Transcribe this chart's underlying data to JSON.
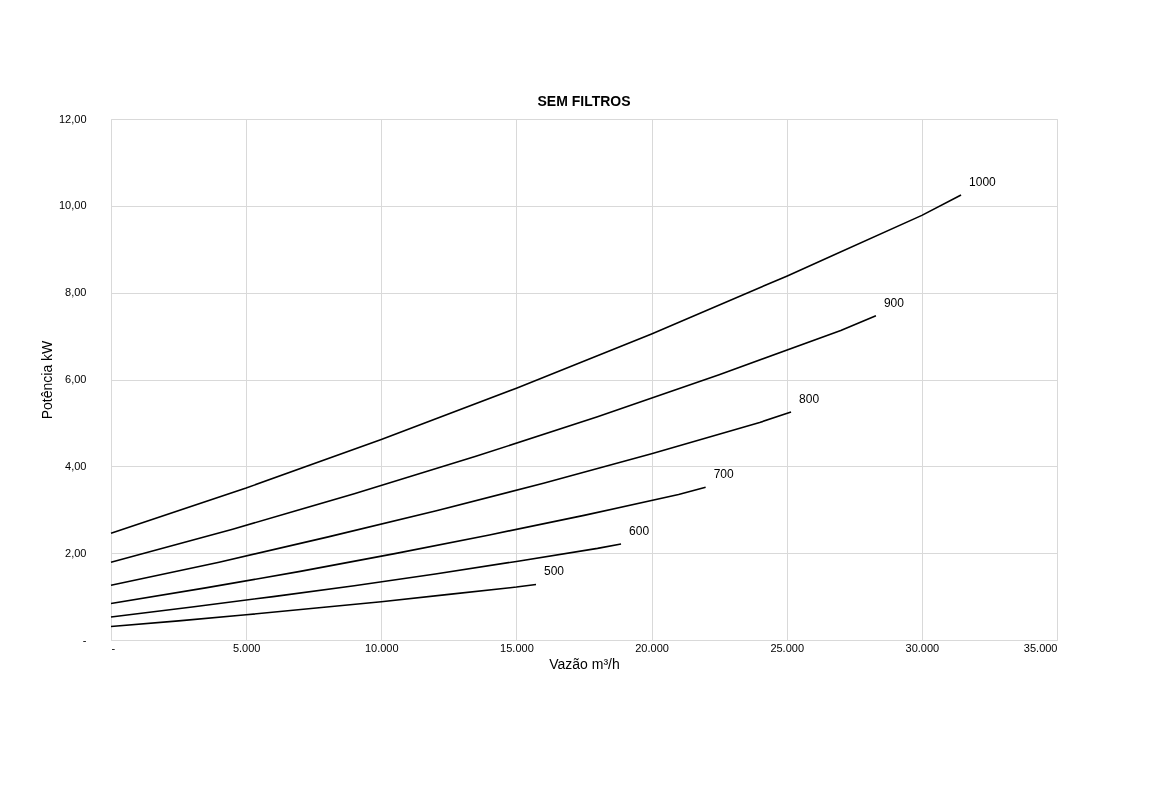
{
  "chart_data": {
    "type": "line",
    "title": "SEM FILTROS",
    "xlabel": "Vazão m³/h",
    "ylabel": "Potência kW",
    "xlim": [
      0,
      35000
    ],
    "xticks": [
      {
        "value": 0,
        "label": "-"
      },
      {
        "value": 5000,
        "label": "5.000"
      },
      {
        "value": 10000,
        "label": "10.000"
      },
      {
        "value": 15000,
        "label": "15.000"
      },
      {
        "value": 20000,
        "label": "20.000"
      },
      {
        "value": 25000,
        "label": "25.000"
      },
      {
        "value": 30000,
        "label": "30.000"
      },
      {
        "value": 35000,
        "label": "35.000"
      }
    ],
    "ylim": [
      0,
      12
    ],
    "yticks": [
      {
        "value": 0,
        "label": "-"
      },
      {
        "value": 2,
        "label": "2,00"
      },
      {
        "value": 4,
        "label": "4,00"
      },
      {
        "value": 6,
        "label": "6,00"
      },
      {
        "value": 8,
        "label": "8,00"
      },
      {
        "value": 10,
        "label": "10,00"
      },
      {
        "value": 12,
        "label": "12,00"
      }
    ],
    "grid": true,
    "legend": false,
    "marker": "none",
    "line_style": "solid",
    "series": [
      {
        "name": "1000",
        "color": "#000000",
        "x": [
          0,
          5000,
          10000,
          15000,
          20000,
          25000,
          30000,
          31450
        ],
        "values": [
          2.46,
          3.5,
          4.62,
          5.8,
          7.05,
          8.38,
          9.78,
          10.25
        ]
      },
      {
        "name": "900",
        "color": "#000000",
        "x": [
          0,
          4500,
          9000,
          13500,
          18000,
          22500,
          27000,
          28300
        ],
        "values": [
          1.79,
          2.55,
          3.37,
          4.23,
          5.14,
          6.11,
          7.13,
          7.47
        ]
      },
      {
        "name": "800",
        "color": "#000000",
        "x": [
          0,
          4000,
          8000,
          12000,
          16000,
          20000,
          24000,
          25160
        ],
        "values": [
          1.26,
          1.79,
          2.37,
          2.97,
          3.61,
          4.29,
          5.01,
          5.25
        ]
      },
      {
        "name": "700",
        "color": "#000000",
        "x": [
          0,
          3500,
          7000,
          10500,
          14000,
          17500,
          21000,
          22000
        ],
        "values": [
          0.84,
          1.2,
          1.58,
          1.99,
          2.42,
          2.87,
          3.35,
          3.52
        ]
      },
      {
        "name": "600",
        "color": "#000000",
        "x": [
          0,
          3000,
          6000,
          9000,
          12000,
          15000,
          18000,
          18870
        ],
        "values": [
          0.53,
          0.76,
          1.0,
          1.25,
          1.52,
          1.81,
          2.11,
          2.21
        ]
      },
      {
        "name": "500",
        "color": "#000000",
        "x": [
          0,
          2500,
          5000,
          7500,
          10000,
          12500,
          15000,
          15725
        ],
        "values": [
          0.31,
          0.44,
          0.58,
          0.73,
          0.88,
          1.05,
          1.22,
          1.28
        ]
      }
    ]
  }
}
